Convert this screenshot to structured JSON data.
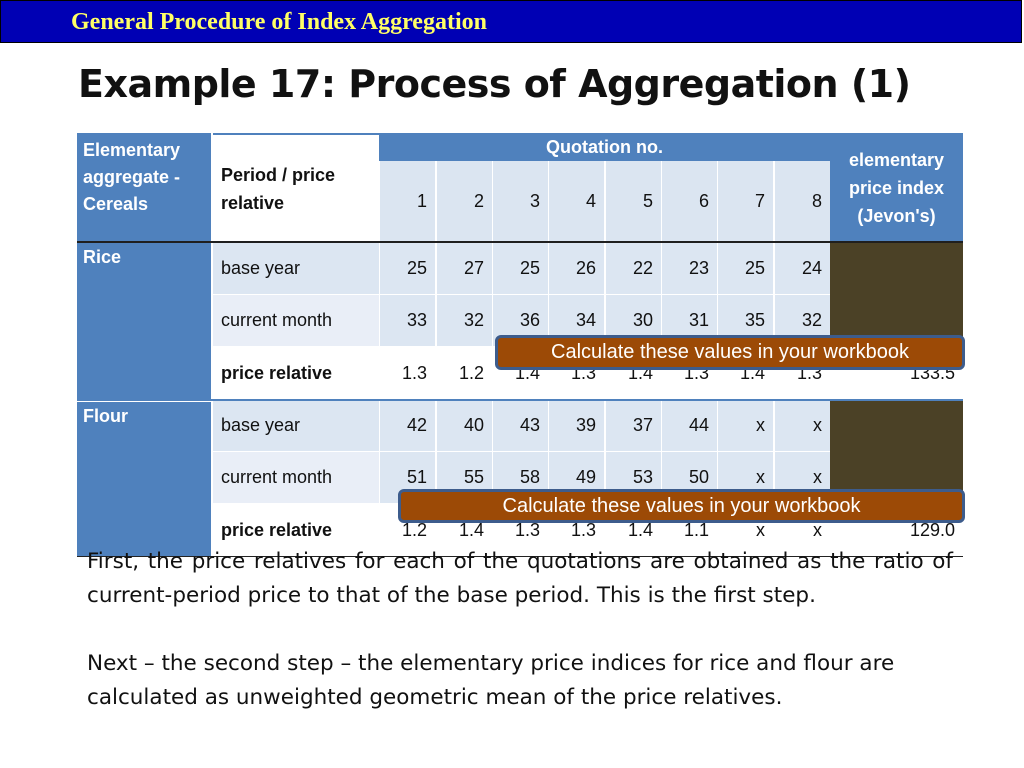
{
  "header": {
    "section_title": "General Procedure of Index Aggregation"
  },
  "slide": {
    "title": "Example 17: Process of Aggregation (1)"
  },
  "table": {
    "corner_label": "Elementary aggregate - Cereals",
    "period_header": "Period / price relative",
    "quotation_header": "Quotation no.",
    "quotation_numbers": [
      "1",
      "2",
      "3",
      "4",
      "5",
      "6",
      "7",
      "8"
    ],
    "index_header": "elementary price index (Jevon's)",
    "groups": [
      {
        "name": "Rice",
        "rows": [
          {
            "label": "base year",
            "values": [
              "25",
              "27",
              "25",
              "26",
              "22",
              "23",
              "25",
              "24"
            ],
            "index": ""
          },
          {
            "label": "current month",
            "values": [
              "33",
              "32",
              "36",
              "34",
              "30",
              "31",
              "35",
              "32"
            ],
            "index": ""
          },
          {
            "label": "price relative",
            "values": [
              "1.3",
              "1.2",
              "1.4",
              "1.3",
              "1.4",
              "1.3",
              "1.4",
              "1.3"
            ],
            "index": "133.5"
          }
        ]
      },
      {
        "name": "Flour",
        "rows": [
          {
            "label": "base year",
            "values": [
              "42",
              "40",
              "43",
              "39",
              "37",
              "44",
              "x",
              "x"
            ],
            "index": ""
          },
          {
            "label": "current month",
            "values": [
              "51",
              "55",
              "58",
              "49",
              "53",
              "50",
              "x",
              "x"
            ],
            "index": ""
          },
          {
            "label": "price relative",
            "values": [
              "1.2",
              "1.4",
              "1.3",
              "1.3",
              "1.4",
              "1.1",
              "x",
              "x"
            ],
            "index": "129.0"
          }
        ]
      }
    ]
  },
  "callouts": {
    "rice": "Calculate these values in your workbook",
    "flour": "Calculate these values in your workbook"
  },
  "body": {
    "paragraph_1": "First, the price relatives for each of the quotations are obtained as the ratio of current-period price to that of the base period. This is the first step.",
    "paragraph_2": "Next – the second step – the elementary price indices for rice and flour are calculated as unweighted geometric mean of the price relatives."
  }
}
